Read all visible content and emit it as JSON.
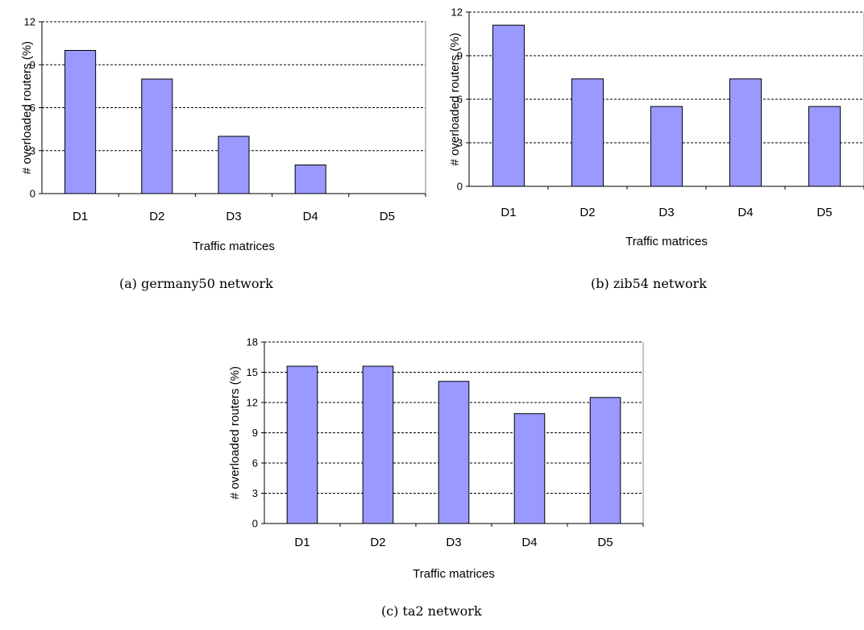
{
  "chart_data": [
    {
      "type": "bar",
      "caption": "(a) germany50 network",
      "xlabel": "Traffic matrices",
      "ylabel": "# overloaded routers (%)",
      "categories": [
        "D1",
        "D2",
        "D3",
        "D4",
        "D5"
      ],
      "values": [
        10,
        8,
        4,
        2,
        0
      ],
      "ylim": [
        0,
        12
      ],
      "yticks": [
        0,
        3,
        6,
        9,
        12
      ],
      "grid": "horizontal dashed",
      "bar_color": "#9999ff"
    },
    {
      "type": "bar",
      "caption": "(b) zib54 network",
      "xlabel": "Traffic matrices",
      "ylabel": "# overloaded routers (%)",
      "categories": [
        "D1",
        "D2",
        "D3",
        "D4",
        "D5"
      ],
      "values": [
        11.1,
        7.4,
        5.5,
        7.4,
        5.5
      ],
      "ylim": [
        0,
        12
      ],
      "yticks": [
        0,
        3,
        6,
        9,
        12
      ],
      "grid": "horizontal dashed",
      "bar_color": "#9999ff"
    },
    {
      "type": "bar",
      "caption": "(c) ta2 network",
      "xlabel": "Traffic matrices",
      "ylabel": "# overloaded routers (%)",
      "categories": [
        "D1",
        "D2",
        "D3",
        "D4",
        "D5"
      ],
      "values": [
        15.6,
        15.6,
        14.1,
        10.9,
        12.5
      ],
      "ylim": [
        0,
        18
      ],
      "yticks": [
        0,
        3,
        6,
        9,
        12,
        15,
        18
      ],
      "grid": "horizontal dashed",
      "bar_color": "#9999ff"
    }
  ]
}
